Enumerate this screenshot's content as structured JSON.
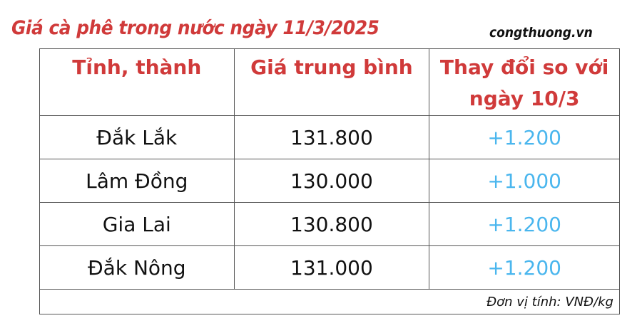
{
  "title": "Giá cà phê trong nước ngày 11/3/2025",
  "source": "congthuong.vn",
  "colors": {
    "heading": "#d03a3a",
    "change": "#4ab6ee"
  },
  "table": {
    "headers": [
      "Tỉnh, thành",
      "Giá trung bình",
      "Thay đổi so với ngày 10/3"
    ],
    "rows": [
      {
        "province": "Đắk Lắk",
        "price": "131.800",
        "change": "+1.200"
      },
      {
        "province": "Lâm Đồng",
        "price": "130.000",
        "change": "+1.000"
      },
      {
        "province": "Gia Lai",
        "price": "130.800",
        "change": "+1.200"
      },
      {
        "province": "Đắk Nông",
        "price": "131.000",
        "change": "+1.200"
      }
    ],
    "unit_note": "Đơn vị tính: VNĐ/kg"
  }
}
